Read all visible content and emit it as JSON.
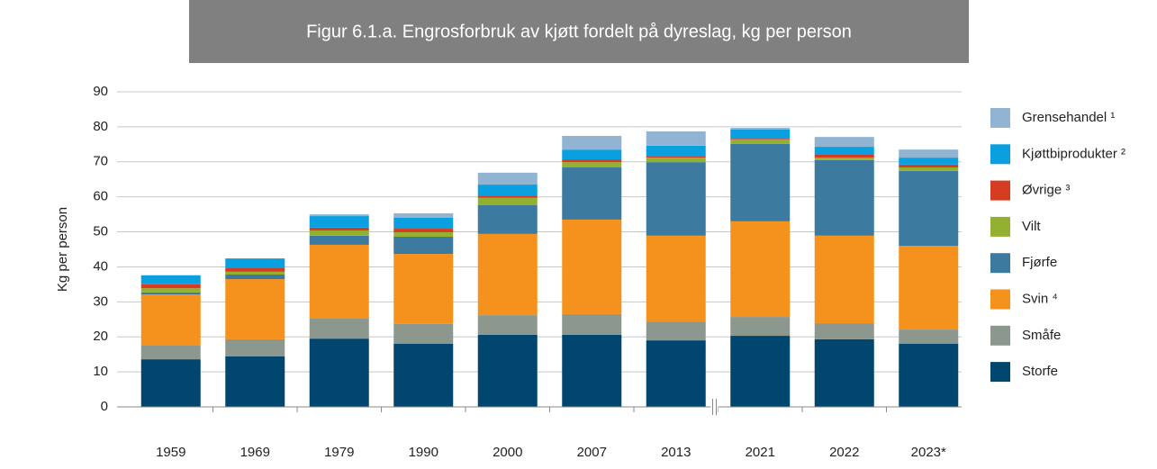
{
  "chart_data": {
    "type": "stacked_bar",
    "title": "Figur 6.1.a. Engrosforbruk av kjøtt fordelt på dyreslag, kg per person",
    "y_label": "Kg per person",
    "categories": [
      "1959",
      "1969",
      "1979",
      "1990",
      "2000",
      "2007",
      "2013",
      "2021",
      "2022",
      "2023*"
    ],
    "series": [
      {
        "name": "Storfe",
        "color": "#00466e",
        "values": [
          13.6,
          14.4,
          19.5,
          18.0,
          20.6,
          20.6,
          19.0,
          20.3,
          19.3,
          18.0
        ]
      },
      {
        "name": "Småfe",
        "color": "#8c978e",
        "values": [
          4.1,
          4.9,
          5.7,
          5.7,
          5.6,
          5.9,
          5.4,
          5.4,
          4.6,
          4.1
        ]
      },
      {
        "name": "Svin ⁴",
        "color": "#f5921e",
        "values": [
          14.4,
          17.2,
          21.1,
          20.0,
          23.2,
          27.0,
          24.5,
          27.3,
          25.0,
          23.9
        ]
      },
      {
        "name": "Fjørfe",
        "color": "#3d7a9f",
        "values": [
          0.6,
          1.3,
          2.6,
          4.9,
          8.2,
          14.9,
          21.0,
          22.1,
          21.6,
          21.4
        ]
      },
      {
        "name": "Vilt",
        "color": "#94b030",
        "values": [
          1.2,
          0.8,
          1.5,
          1.3,
          2.1,
          1.5,
          1.3,
          1.3,
          0.7,
          1.0
        ]
      },
      {
        "name": "Øvrige ³",
        "color": "#d63c22",
        "values": [
          1.1,
          1.0,
          0.8,
          1.0,
          0.7,
          0.8,
          0.5,
          0.2,
          0.8,
          0.8
        ]
      },
      {
        "name": "Kjøttbiprodukter ²",
        "color": "#0aa0e0",
        "values": [
          2.6,
          2.8,
          3.3,
          3.1,
          3.1,
          2.8,
          2.9,
          2.6,
          2.3,
          2.0
        ]
      },
      {
        "name": "Grensehandel ¹",
        "color": "#91b4d2",
        "values": [
          0,
          0,
          0.5,
          1.3,
          3.4,
          3.9,
          4.1,
          0.5,
          2.8,
          2.3
        ]
      }
    ],
    "ylim": [
      0,
      90
    ],
    "yticks": [
      0,
      10,
      20,
      30,
      40,
      50,
      60,
      70,
      80,
      90
    ],
    "grid": true,
    "legend": "right"
  }
}
